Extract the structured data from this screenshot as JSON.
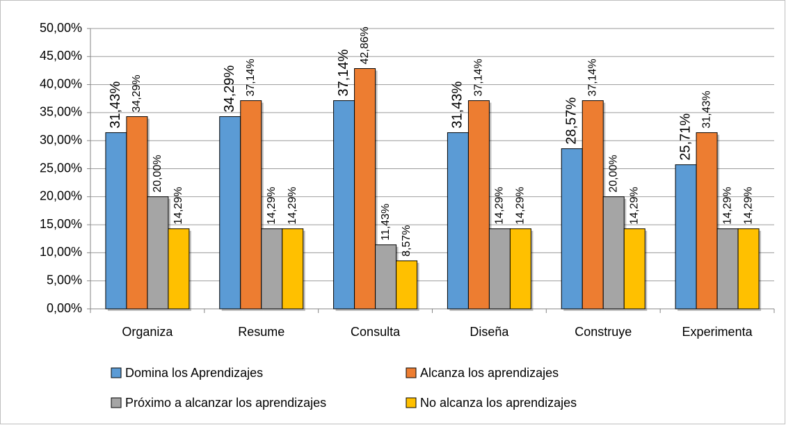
{
  "chart_data": {
    "type": "bar",
    "categories": [
      "Organiza",
      "Resume",
      "Consulta",
      "Diseña",
      "Construye",
      "Experimenta"
    ],
    "series": [
      {
        "name": "Domina los Aprendizajes",
        "color": "#5b9bd5",
        "values": [
          31.43,
          34.29,
          37.14,
          31.43,
          28.57,
          25.71
        ],
        "value_labels": [
          "31,43%",
          "34,29%",
          "37,14%",
          "31,43%",
          "28,57%",
          "25,71%"
        ]
      },
      {
        "name": "Alcanza los aprendizajes",
        "color": "#ed7d31",
        "values": [
          34.29,
          37.14,
          42.86,
          37.14,
          37.14,
          31.43
        ],
        "value_labels": [
          "34,29%",
          "37,14%",
          "42,86%",
          "37,14%",
          "37,14%",
          "31,43%"
        ]
      },
      {
        "name": "Próximo a alcanzar los aprendizajes",
        "color": "#a5a5a5",
        "values": [
          20,
          14.29,
          11.43,
          14.29,
          20,
          14.29
        ],
        "value_labels": [
          "20,00%",
          "14,29%",
          "11,43%",
          "14,29%",
          "20,00%",
          "14,29%"
        ]
      },
      {
        "name": "No alcanza los aprendizajes",
        "color": "#ffc000",
        "values": [
          14.29,
          14.29,
          8.57,
          14.29,
          14.29,
          14.29
        ],
        "value_labels": [
          "14,29%",
          "14,29%",
          "8,57%",
          "14,29%",
          "14,29%",
          "14,29%"
        ]
      }
    ],
    "ylim": [
      0,
      50
    ],
    "yticks": [
      {
        "value": 0,
        "label": "0,00%"
      },
      {
        "value": 5,
        "label": "5,00%"
      },
      {
        "value": 10,
        "label": "10,00%"
      },
      {
        "value": 15,
        "label": "15,00%"
      },
      {
        "value": 20,
        "label": "20,00%"
      },
      {
        "value": 25,
        "label": "25,00%"
      },
      {
        "value": 30,
        "label": "30,00%"
      },
      {
        "value": 35,
        "label": "35,00%"
      },
      {
        "value": 40,
        "label": "40,00%"
      },
      {
        "value": 45,
        "label": "45,00%"
      },
      {
        "value": 50,
        "label": "50,00%"
      }
    ],
    "grid": true,
    "legend": "bottom"
  }
}
